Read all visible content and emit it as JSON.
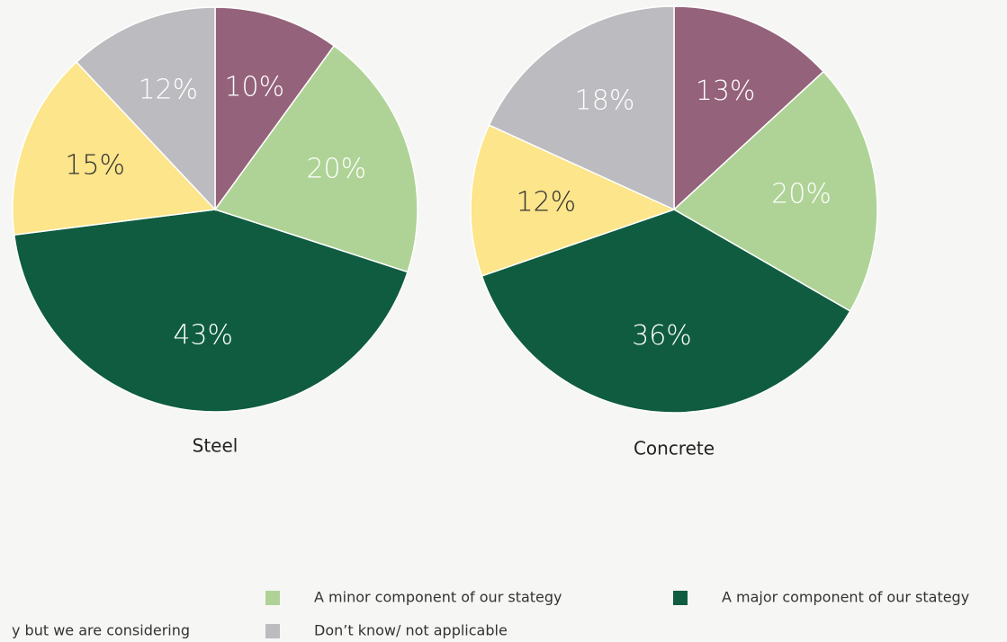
{
  "legend": {
    "categories": [
      null,
      "A minor component of our stategy",
      "A major component of our stategy",
      "y but we are considering",
      "Don’t know/ not applicable"
    ],
    "colors": [
      "#94627a",
      "#afd396",
      "#0f5c40",
      "#fce58a",
      "#bcbbbf"
    ]
  },
  "chart_data": [
    {
      "type": "pie",
      "title": "Steel",
      "values": [
        10,
        20,
        43,
        15,
        12
      ],
      "value_labels": [
        "10%",
        "20%",
        "43%",
        "15%",
        "12%"
      ]
    },
    {
      "type": "pie",
      "title": "Concrete",
      "values": [
        13,
        20,
        36,
        12,
        18
      ],
      "value_labels": [
        "13%",
        "20%",
        "36%",
        "12%",
        "18%"
      ]
    }
  ]
}
